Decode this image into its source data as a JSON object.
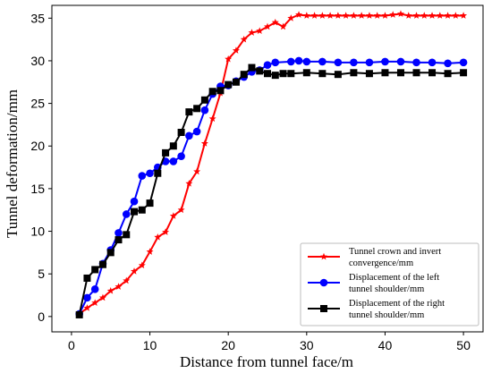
{
  "chart_data": {
    "type": "line",
    "xlabel": "Distance from tunnel face/m",
    "ylabel": "Tunnel deformation/mm",
    "xlim": [
      -2.5,
      52.5
    ],
    "ylim": [
      -1.8,
      36.5
    ],
    "xticks": [
      0,
      10,
      20,
      30,
      40,
      50
    ],
    "yticks": [
      0,
      5,
      10,
      15,
      20,
      25,
      30,
      35
    ],
    "grid": false,
    "legend_position": "bottom-right",
    "series": [
      {
        "name_lines": [
          "Tunnel crown and invert",
          "convergence/mm"
        ],
        "color": "#ff0000",
        "marker": "star",
        "x": [
          1,
          2,
          3,
          4,
          5,
          6,
          7,
          8,
          9,
          10,
          11,
          12,
          13,
          14,
          15,
          16,
          17,
          18,
          19,
          20,
          21,
          22,
          23,
          24,
          25,
          26,
          27,
          28,
          29,
          30,
          31,
          32,
          33,
          34,
          35,
          36,
          37,
          38,
          39,
          40,
          41,
          42,
          43,
          44,
          45,
          46,
          47,
          48,
          49,
          50
        ],
        "y": [
          0.3,
          1.0,
          1.6,
          2.2,
          3.0,
          3.5,
          4.2,
          5.3,
          6.0,
          7.6,
          9.3,
          9.9,
          11.8,
          12.5,
          15.6,
          17.0,
          20.3,
          23.2,
          26.2,
          30.2,
          31.2,
          32.5,
          33.3,
          33.5,
          34.0,
          34.5,
          34.0,
          35.0,
          35.4,
          35.3,
          35.3,
          35.3,
          35.3,
          35.3,
          35.3,
          35.3,
          35.3,
          35.3,
          35.3,
          35.3,
          35.4,
          35.5,
          35.3,
          35.3,
          35.3,
          35.3,
          35.3,
          35.3,
          35.3,
          35.3
        ]
      },
      {
        "name_lines": [
          "Displacement of the left",
          "tunnel shoulder/mm"
        ],
        "color": "#0000ff",
        "marker": "circle",
        "x": [
          1,
          2,
          3,
          4,
          5,
          6,
          7,
          8,
          9,
          10,
          11,
          12,
          13,
          14,
          15,
          16,
          17,
          18,
          19,
          20,
          21,
          22,
          23,
          24,
          25,
          26,
          28,
          29,
          30,
          32,
          34,
          36,
          38,
          40,
          42,
          44,
          46,
          48,
          50
        ],
        "y": [
          0.3,
          2.2,
          3.2,
          6.2,
          7.8,
          9.8,
          12.0,
          13.5,
          16.5,
          16.8,
          17.5,
          18.2,
          18.2,
          18.8,
          21.2,
          21.7,
          24.2,
          26.1,
          27.0,
          27.1,
          27.6,
          28.1,
          28.7,
          28.9,
          29.5,
          29.8,
          29.9,
          30.0,
          29.9,
          29.9,
          29.8,
          29.8,
          29.8,
          29.9,
          29.9,
          29.8,
          29.8,
          29.7,
          29.8
        ]
      },
      {
        "name_lines": [
          "Displacement of the right",
          "tunnel shoulder/mm"
        ],
        "color": "#000000",
        "marker": "square",
        "x": [
          1,
          2,
          3,
          4,
          5,
          6,
          7,
          8,
          9,
          10,
          11,
          12,
          13,
          14,
          15,
          16,
          17,
          18,
          19,
          20,
          21,
          22,
          23,
          24,
          25,
          26,
          27,
          28,
          30,
          32,
          34,
          36,
          38,
          40,
          42,
          44,
          46,
          48,
          50
        ],
        "y": [
          0.2,
          4.5,
          5.5,
          6.1,
          7.5,
          9.0,
          9.6,
          12.3,
          12.5,
          13.3,
          16.8,
          19.2,
          20.0,
          21.6,
          24.0,
          24.4,
          25.4,
          26.4,
          26.5,
          27.2,
          27.5,
          28.4,
          29.2,
          28.8,
          28.5,
          28.3,
          28.5,
          28.5,
          28.6,
          28.5,
          28.4,
          28.6,
          28.5,
          28.6,
          28.6,
          28.6,
          28.6,
          28.5,
          28.6
        ]
      }
    ]
  }
}
